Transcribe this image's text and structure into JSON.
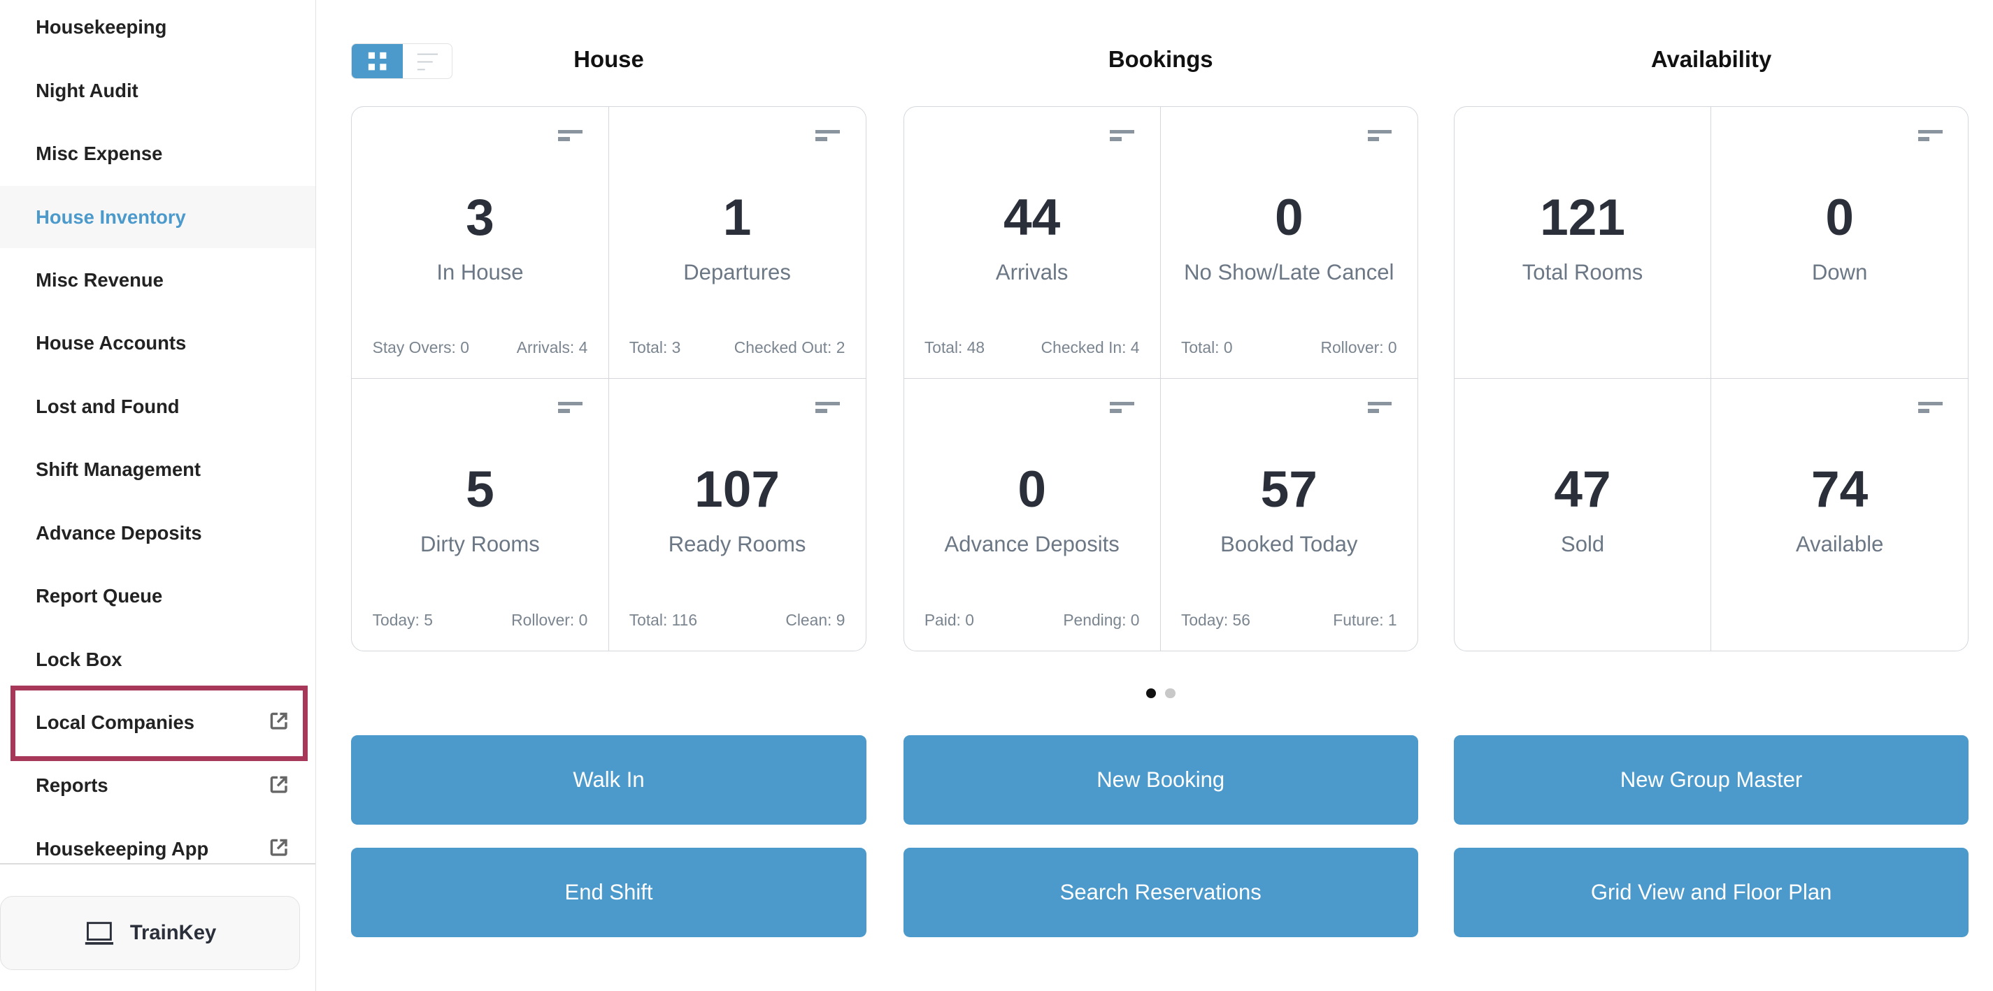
{
  "sidebar": {
    "items": [
      {
        "label": "Housekeeping"
      },
      {
        "label": "Night Audit"
      },
      {
        "label": "Misc Expense"
      },
      {
        "label": "House Inventory",
        "active": true
      },
      {
        "label": "Misc Revenue"
      },
      {
        "label": "House Accounts"
      },
      {
        "label": "Lost and Found"
      },
      {
        "label": "Shift Management"
      },
      {
        "label": "Advance Deposits"
      },
      {
        "label": "Report Queue"
      },
      {
        "label": "Lock Box"
      },
      {
        "label": "Local Companies",
        "external": true,
        "highlighted": true
      },
      {
        "label": "Reports",
        "external": true
      },
      {
        "label": "Housekeeping App",
        "external": true
      }
    ],
    "trainkey": {
      "label": "TrainKey",
      "icon": "laptop-icon"
    }
  },
  "colors": {
    "accent": "#4c9acb",
    "highlight": "#a8385a"
  },
  "view_toggle": {
    "active": "grid"
  },
  "sections": [
    {
      "title": "House",
      "cells": [
        {
          "value": "3",
          "label": "In House",
          "left": "Stay Overs: 0",
          "right": "Arrivals: 4"
        },
        {
          "value": "1",
          "label": "Departures",
          "left": "Total: 3",
          "right": "Checked Out: 2"
        },
        {
          "value": "5",
          "label": "Dirty Rooms",
          "left": "Today: 5",
          "right": "Rollover: 0"
        },
        {
          "value": "107",
          "label": "Ready Rooms",
          "left": "Total: 116",
          "right": "Clean: 9"
        }
      ]
    },
    {
      "title": "Bookings",
      "cells": [
        {
          "value": "44",
          "label": "Arrivals",
          "left": "Total: 48",
          "right": "Checked In: 4"
        },
        {
          "value": "0",
          "label": "No Show/Late Cancel",
          "left": "Total: 0",
          "right": "Rollover: 0"
        },
        {
          "value": "0",
          "label": "Advance Deposits",
          "left": "Paid: 0",
          "right": "Pending: 0"
        },
        {
          "value": "57",
          "label": "Booked Today",
          "left": "Today: 56",
          "right": "Future: 1"
        }
      ]
    },
    {
      "title": "Availability",
      "cells": [
        {
          "value": "121",
          "label": "Total Rooms",
          "left": "",
          "right": "",
          "menu": false
        },
        {
          "value": "0",
          "label": "Down",
          "left": "",
          "right": ""
        },
        {
          "value": "47",
          "label": "Sold",
          "left": "",
          "right": "",
          "menu": false
        },
        {
          "value": "74",
          "label": "Available",
          "left": "",
          "right": ""
        }
      ]
    }
  ],
  "pager": {
    "pages": 2,
    "current": 1
  },
  "actions": [
    "Walk In",
    "New Booking",
    "New Group Master",
    "End Shift",
    "Search Reservations",
    "Grid View and Floor Plan"
  ]
}
